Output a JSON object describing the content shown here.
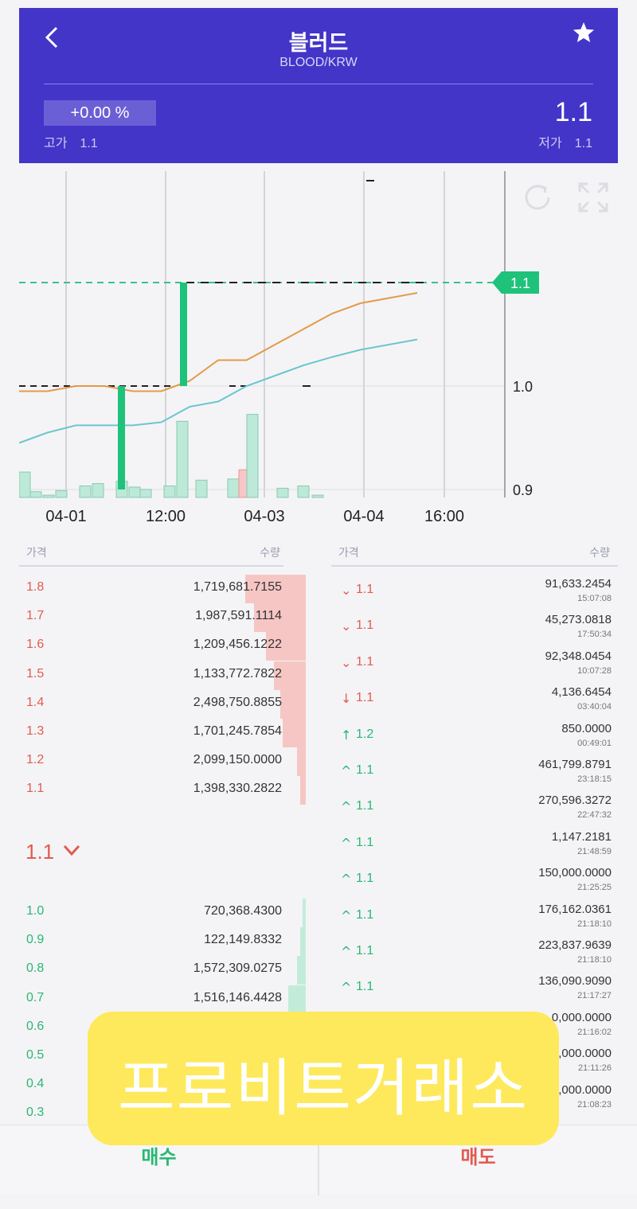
{
  "header": {
    "title": "블러드",
    "subtitle": "BLOOD/KRW",
    "change": "+0.00 %",
    "price": "1.1",
    "high_label": "고가",
    "high_value": "1.1",
    "low_label": "저가",
    "low_value": "1.1",
    "colors": {
      "background": "#4335c8",
      "change_box": "#6b5fd6"
    }
  },
  "chart_data": {
    "type": "line",
    "x_ticks": [
      "04-01",
      "12:00",
      "04-03",
      "04-04",
      "16:00"
    ],
    "y_ticks": [
      "1.0",
      "0.9"
    ],
    "current_price_label": "1.1",
    "ylim": [
      0.9,
      1.1
    ],
    "candles": [
      {
        "x_index": 4,
        "open": 1.0,
        "close": 0.9,
        "color": "#1ec27a"
      },
      {
        "x_index": 6.5,
        "open": 1.0,
        "close": 1.1,
        "color": "#1ec27a"
      }
    ],
    "series": [
      {
        "color": "#e39a4a",
        "values": [
          0.995,
          0.995,
          1.0,
          1.0,
          0.995,
          0.995,
          1.005,
          1.025,
          1.025,
          1.04,
          1.055,
          1.07,
          1.08,
          1.085,
          1.09
        ]
      },
      {
        "color": "#6cc6cf",
        "values": [
          0.945,
          0.955,
          0.962,
          0.962,
          0.962,
          0.965,
          0.98,
          0.985,
          1.0,
          1.01,
          1.02,
          1.028,
          1.035,
          1.04,
          1.045
        ]
      }
    ],
    "volume": [
      0.22,
      0.05,
      0.02,
      0.06,
      0.1,
      0.12,
      0.14,
      0.09,
      0.07,
      0.1,
      0.66,
      0.15,
      0.16,
      0.24,
      0.72,
      0.08,
      0.1,
      0.02
    ]
  },
  "orderbook": {
    "price_header": "가격",
    "qty_header": "수량",
    "asks": [
      {
        "price": "1.8",
        "qty": "1,719,681.7155",
        "depth": 0.21
      },
      {
        "price": "1.7",
        "qty": "1,987,591.1114",
        "depth": 0.18
      },
      {
        "price": "1.6",
        "qty": "1,209,456.1222",
        "depth": 0.14
      },
      {
        "price": "1.5",
        "qty": "1,133,772.7822",
        "depth": 0.11
      },
      {
        "price": "1.4",
        "qty": "2,498,750.8855",
        "depth": 0.09
      },
      {
        "price": "1.3",
        "qty": "1,701,245.7854",
        "depth": 0.08
      },
      {
        "price": "1.2",
        "qty": "2,099,150.0000",
        "depth": 0.03
      },
      {
        "price": "1.1",
        "qty": "1,398,330.2822",
        "depth": 0.02
      }
    ],
    "current": "1.1",
    "bids": [
      {
        "price": "1.0",
        "qty": "720,368.4300",
        "depth": 0.01
      },
      {
        "price": "0.9",
        "qty": "122,149.8332",
        "depth": 0.02
      },
      {
        "price": "0.8",
        "qty": "1,572,309.0275",
        "depth": 0.03
      },
      {
        "price": "0.7",
        "qty": "1,516,146.4428",
        "depth": 0.06
      },
      {
        "price": "0.6",
        "qty": "",
        "depth": 0.07
      },
      {
        "price": "0.5",
        "qty": "",
        "depth": 0.08
      },
      {
        "price": "0.4",
        "qty": "",
        "depth": 0.09
      },
      {
        "price": "0.3",
        "qty": "",
        "depth": 0.1
      }
    ]
  },
  "trades": {
    "price_header": "가격",
    "qty_header": "수량",
    "items": [
      {
        "dir": "⌄",
        "cls": "down",
        "price": "1.1",
        "qty": "91,633.2454",
        "time": "15:07:08"
      },
      {
        "dir": "⌄",
        "cls": "down",
        "price": "1.1",
        "qty": "45,273.0818",
        "time": "17:50:34"
      },
      {
        "dir": "⌄",
        "cls": "down",
        "price": "1.1",
        "qty": "92,348.0454",
        "time": "10:07:28"
      },
      {
        "dir": "↓",
        "cls": "down",
        "price": "1.1",
        "qty": "4,136.6454",
        "time": "03:40:04"
      },
      {
        "dir": "↑",
        "cls": "up",
        "price": "1.2",
        "qty": "850.0000",
        "time": "00:49:01"
      },
      {
        "dir": "^",
        "cls": "up",
        "price": "1.1",
        "qty": "461,799.8791",
        "time": "23:18:15"
      },
      {
        "dir": "^",
        "cls": "up",
        "price": "1.1",
        "qty": "270,596.3272",
        "time": "22:47:32"
      },
      {
        "dir": "^",
        "cls": "up",
        "price": "1.1",
        "qty": "1,147.2181",
        "time": "21:48:59"
      },
      {
        "dir": "^",
        "cls": "up",
        "price": "1.1",
        "qty": "150,000.0000",
        "time": "21:25:25"
      },
      {
        "dir": "^",
        "cls": "up",
        "price": "1.1",
        "qty": "176,162.0361",
        "time": "21:18:10"
      },
      {
        "dir": "^",
        "cls": "up",
        "price": "1.1",
        "qty": "223,837.9639",
        "time": "21:18:10"
      },
      {
        "dir": "^",
        "cls": "up",
        "price": "1.1",
        "qty": "136,090.9090",
        "time": "21:17:27"
      },
      {
        "dir": "",
        "cls": "up",
        "price": "",
        "qty": "0,000.0000",
        "time": "21:16:02"
      },
      {
        "dir": "",
        "cls": "up",
        "price": "",
        "qty": "0,000.0000",
        "time": "21:11:26"
      },
      {
        "dir": "",
        "cls": "up",
        "price": "",
        "qty": "0,000.0000",
        "time": "21:08:23"
      }
    ]
  },
  "bottom": {
    "buy": "매수",
    "sell": "매도"
  },
  "banner": {
    "text": "프로비트거래소",
    "color": "#fde95b"
  }
}
